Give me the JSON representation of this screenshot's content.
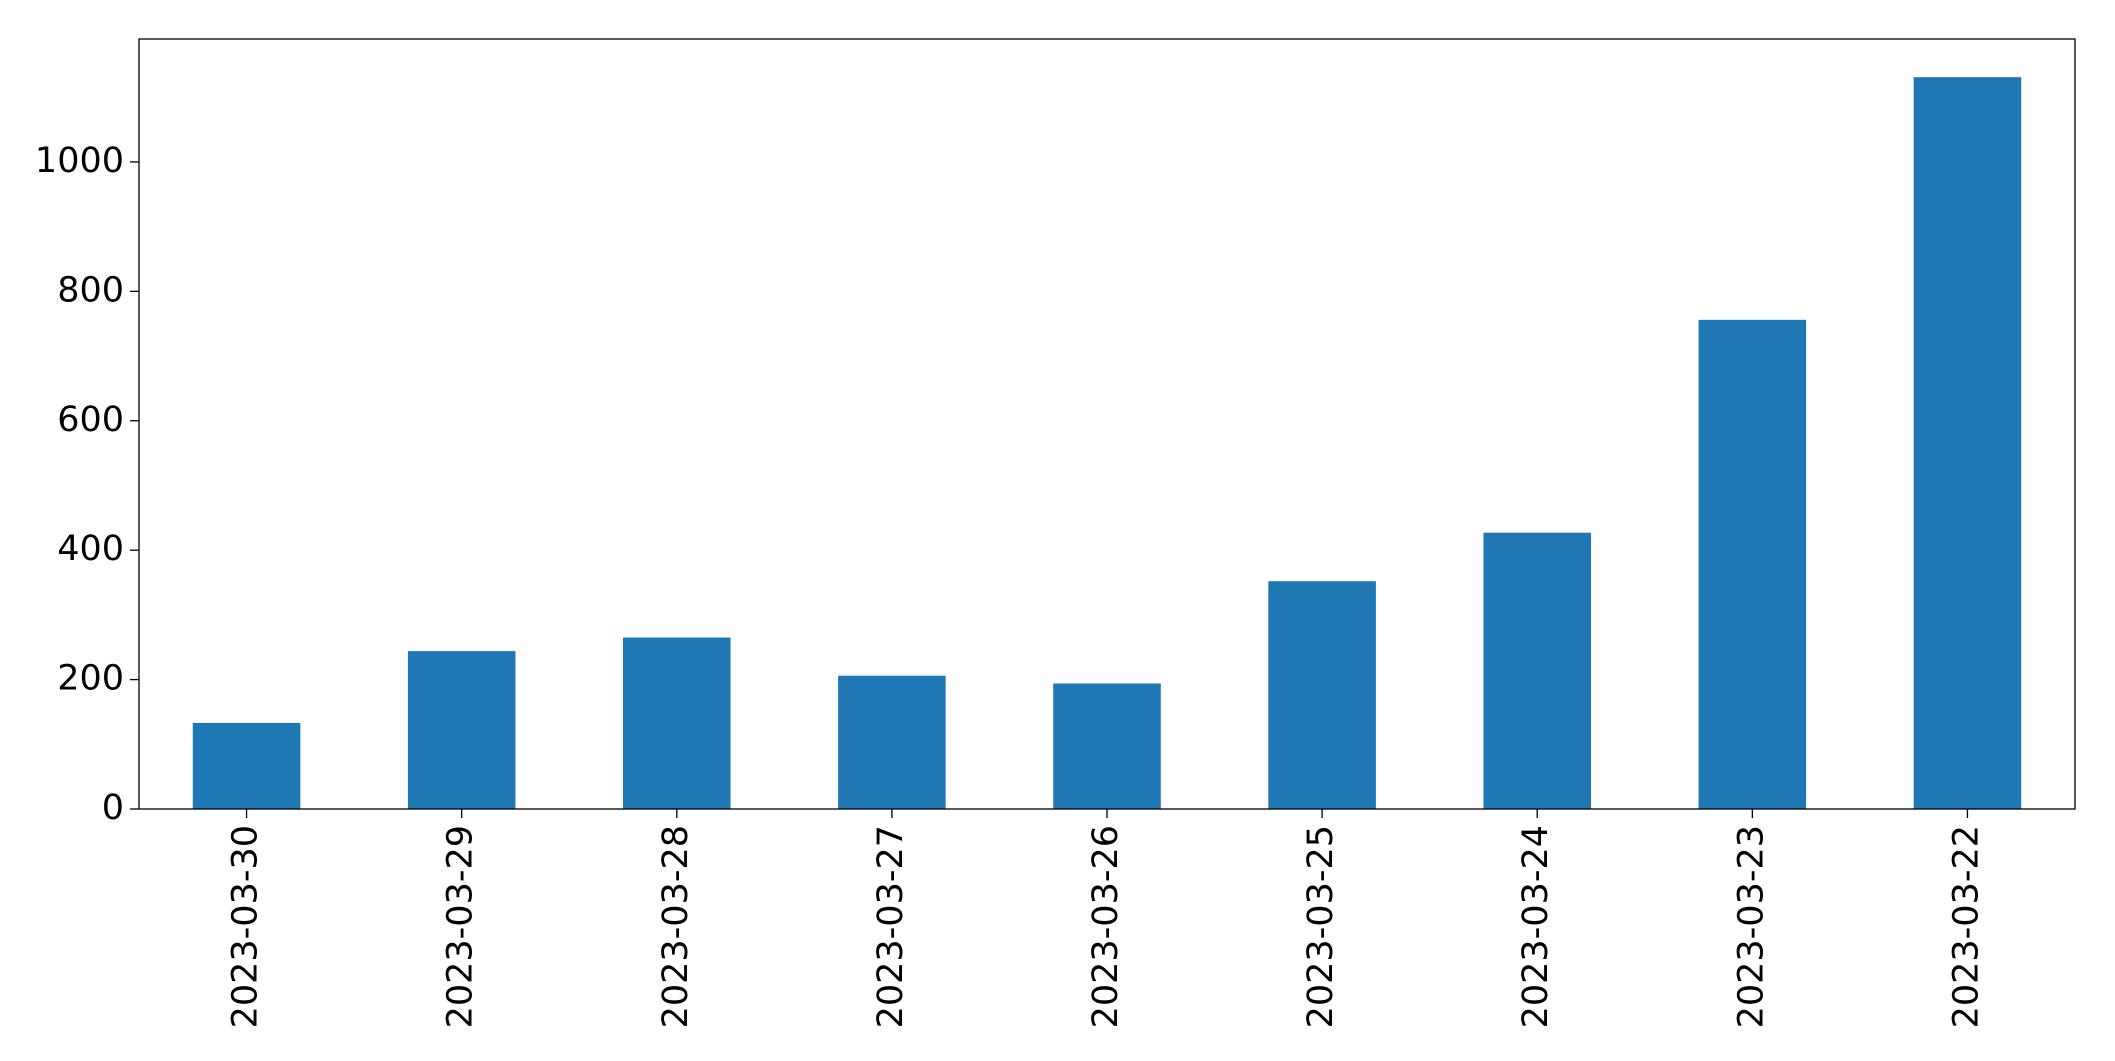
{
  "chart_data": {
    "type": "bar",
    "categories": [
      "2023-03-30",
      "2023-03-29",
      "2023-03-28",
      "2023-03-27",
      "2023-03-26",
      "2023-03-25",
      "2023-03-24",
      "2023-03-23",
      "2023-03-22"
    ],
    "values": [
      133,
      244,
      265,
      206,
      194,
      352,
      427,
      756,
      1131
    ],
    "color": "#1f77b4",
    "ylim": [
      0,
      1190
    ],
    "yticks": [
      0,
      200,
      400,
      600,
      800,
      1000
    ],
    "grid": false
  }
}
